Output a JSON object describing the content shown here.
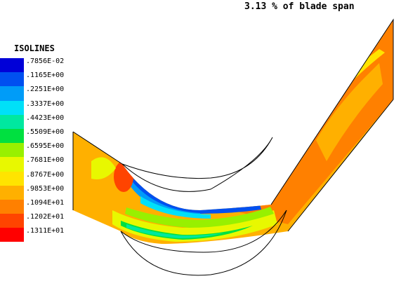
{
  "title": "3.13 % of blade span",
  "legend": {
    "title": "ISOLINES",
    "items": [
      {
        "label": ".7856E-02",
        "color": "#0000d8"
      },
      {
        "label": ".1165E+00",
        "color": "#0050f0"
      },
      {
        "label": ".2251E+00",
        "color": "#009cf8"
      },
      {
        "label": ".3337E+00",
        "color": "#00e0f8"
      },
      {
        "label": ".4423E+00",
        "color": "#00e8a0"
      },
      {
        "label": ".5509E+00",
        "color": "#00e040"
      },
      {
        "label": ".6595E+00",
        "color": "#98f000"
      },
      {
        "label": ".7681E+00",
        "color": "#e8f800"
      },
      {
        "label": ".8767E+00",
        "color": "#ffe400"
      },
      {
        "label": ".9853E+00",
        "color": "#ffb000"
      },
      {
        "label": ".1094E+01",
        "color": "#ff8000"
      },
      {
        "label": ".1202E+01",
        "color": "#ff4400"
      },
      {
        "label": ".1311E+01",
        "color": "#ff0000"
      }
    ]
  }
}
